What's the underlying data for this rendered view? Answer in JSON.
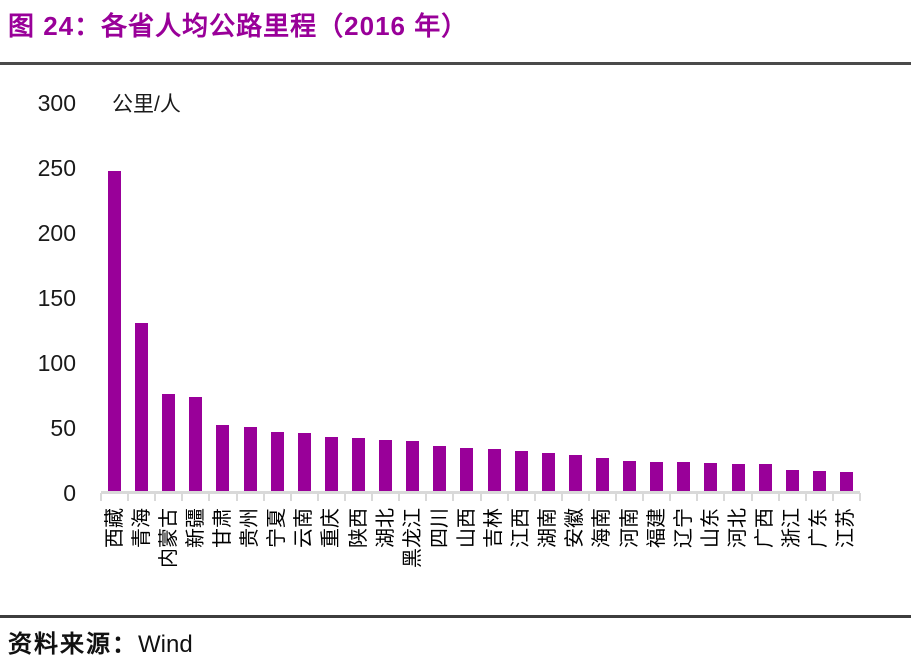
{
  "header": {
    "title": "图 24：各省人均公路里程（2016 年）"
  },
  "footer": {
    "source_prefix": "资料来源：",
    "source_name": "Wind"
  },
  "colors": {
    "accent": "#990099",
    "axis": "#d9d9d9",
    "divider": "#3d3d3d",
    "text": "#1a1a1a"
  },
  "chart_data": {
    "type": "bar",
    "title": "图 24：各省人均公路里程（2016 年）",
    "unit_label": "公里/人",
    "xlabel": "",
    "ylabel": "公里/人",
    "ylim": [
      0,
      300
    ],
    "yticks": [
      0,
      50,
      100,
      150,
      200,
      250,
      300
    ],
    "grid": false,
    "legend_position": "none",
    "bar_color": "#990099",
    "categories": [
      "西藏",
      "青海",
      "内蒙古",
      "新疆",
      "甘肃",
      "贵州",
      "宁夏",
      "云南",
      "重庆",
      "陕西",
      "湖北",
      "黑龙江",
      "四川",
      "山西",
      "吉林",
      "江西",
      "湖南",
      "安徽",
      "海南",
      "河南",
      "福建",
      "辽宁",
      "山东",
      "河北",
      "广西",
      "浙江",
      "广东",
      "江苏"
    ],
    "values": [
      248,
      131,
      76,
      74,
      52,
      51,
      47,
      46,
      43,
      42,
      41,
      40,
      36,
      35,
      34,
      32,
      31,
      29,
      27,
      25,
      24,
      24,
      23,
      22,
      22,
      18,
      17,
      16
    ],
    "source": "Wind"
  }
}
